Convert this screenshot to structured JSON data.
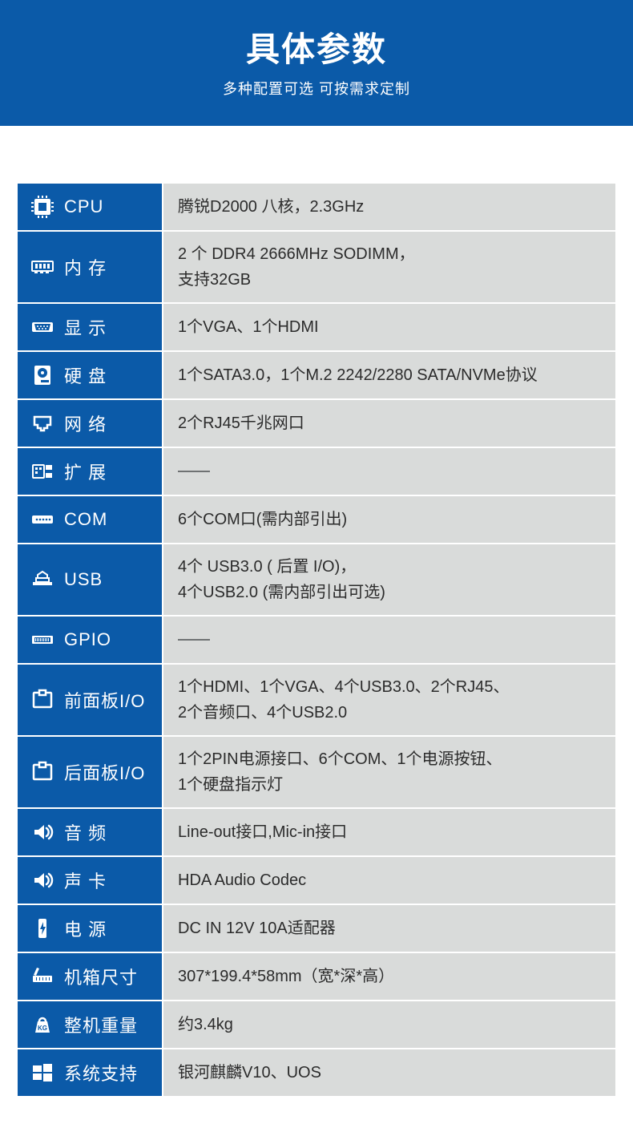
{
  "header": {
    "title": "具体参数",
    "subtitle": "多种配置可选 可按需求定制"
  },
  "colors": {
    "brand_bg": "#0b5aa8",
    "label_bg": "#0b5aa8",
    "value_bg": "#d9dbda",
    "row_divider": "#ffffff",
    "text_value": "#2b2b2b",
    "dash": "#6f7273"
  },
  "rows": [
    {
      "icon": "cpu-icon",
      "label": "CPU",
      "lines": [
        "腾锐D2000 八核，2.3GHz"
      ]
    },
    {
      "icon": "ram-icon",
      "label": "内 存",
      "lines": [
        "2 个 DDR4 2666MHz SODIMM，",
        "支持32GB"
      ]
    },
    {
      "icon": "vga-icon",
      "label": "显 示",
      "lines": [
        "1个VGA、1个HDMI"
      ]
    },
    {
      "icon": "hdd-icon",
      "label": "硬 盘",
      "lines": [
        "1个SATA3.0，1个M.2 2242/2280 SATA/NVMe协议"
      ]
    },
    {
      "icon": "lan-icon",
      "label": "网 络",
      "lines": [
        "2个RJ45千兆网口"
      ]
    },
    {
      "icon": "expand-icon",
      "label": "扩 展",
      "lines": [
        "—"
      ],
      "dash": true
    },
    {
      "icon": "com-icon",
      "label": "COM",
      "lines": [
        "6个COM口(需内部引出)"
      ]
    },
    {
      "icon": "usb-icon",
      "label": "USB",
      "lines": [
        "4个 USB3.0 ( 后置 I/O)，",
        "4个USB2.0 (需内部引出可选)"
      ]
    },
    {
      "icon": "gpio-icon",
      "label": "GPIO",
      "lines": [
        "—"
      ],
      "dash": true
    },
    {
      "icon": "panel-icon",
      "label": "前面板I/O",
      "lines": [
        "1个HDMI、1个VGA、4个USB3.0、2个RJ45、",
        "2个音频口、4个USB2.0"
      ]
    },
    {
      "icon": "panel-icon",
      "label": "后面板I/O",
      "lines": [
        "1个2PIN电源接口、6个COM、1个电源按钮、",
        "1个硬盘指示灯"
      ]
    },
    {
      "icon": "audio-icon",
      "label": "音 频",
      "lines": [
        "Line-out接口,Mic-in接口"
      ]
    },
    {
      "icon": "audio-icon",
      "label": "声 卡",
      "lines": [
        "HDA Audio Codec"
      ]
    },
    {
      "icon": "power-icon",
      "label": "电 源",
      "lines": [
        "DC IN 12V 10A适配器"
      ]
    },
    {
      "icon": "size-icon",
      "label": "机箱尺寸",
      "lines": [
        "307*199.4*58mm（宽*深*高）"
      ]
    },
    {
      "icon": "weight-icon",
      "label": "整机重量",
      "lines": [
        "约3.4kg"
      ]
    },
    {
      "icon": "os-icon",
      "label": "系统支持",
      "lines": [
        "银河麒麟V10、UOS"
      ]
    }
  ]
}
